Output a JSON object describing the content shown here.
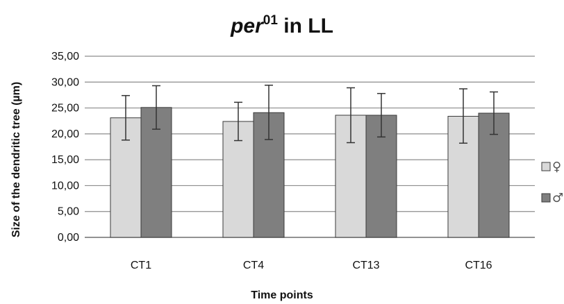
{
  "chart_data": {
    "type": "bar",
    "title": {
      "main": "per",
      "superscript": "01",
      "rest": " in LL"
    },
    "xlabel": "Time points",
    "ylabel": "Size of the dendritic tree (µm)",
    "categories": [
      "CT1",
      "CT4",
      "CT13",
      "CT16"
    ],
    "ylim": [
      0,
      35
    ],
    "ytick_values": [
      0,
      5,
      10,
      15,
      20,
      25,
      30,
      35
    ],
    "ytick_labels": [
      "0,00",
      "5,00",
      "10,00",
      "15,00",
      "20,00",
      "25,00",
      "30,00",
      "35,00"
    ],
    "grid": true,
    "legend_position": "right",
    "series": [
      {
        "name": "♀",
        "color": "#d9d9d9",
        "values": [
          23.1,
          22.4,
          23.6,
          23.4
        ],
        "error_low": [
          18.8,
          18.7,
          18.3,
          18.2
        ],
        "error_high": [
          27.4,
          26.1,
          28.9,
          28.7
        ]
      },
      {
        "name": "♂",
        "color": "#7f7f7f",
        "values": [
          25.1,
          24.1,
          23.6,
          24.0
        ],
        "error_low": [
          20.9,
          18.9,
          19.4,
          19.9
        ],
        "error_high": [
          29.3,
          29.4,
          27.8,
          28.1
        ]
      }
    ]
  }
}
